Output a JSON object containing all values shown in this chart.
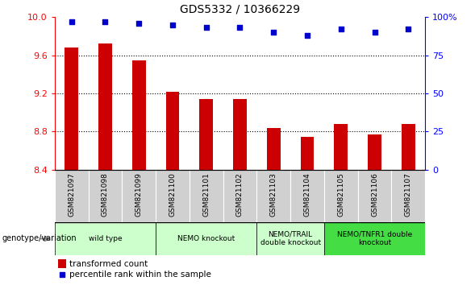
{
  "title": "GDS5332 / 10366229",
  "samples": [
    "GSM821097",
    "GSM821098",
    "GSM821099",
    "GSM821100",
    "GSM821101",
    "GSM821102",
    "GSM821103",
    "GSM821104",
    "GSM821105",
    "GSM821106",
    "GSM821107"
  ],
  "bar_values": [
    9.68,
    9.72,
    9.55,
    9.22,
    9.14,
    9.14,
    8.84,
    8.74,
    8.88,
    8.77,
    8.88
  ],
  "dot_values": [
    97,
    97,
    96,
    95,
    93,
    93,
    90,
    88,
    92,
    90,
    92
  ],
  "ylim_left": [
    8.4,
    10.0
  ],
  "ylim_right": [
    0,
    100
  ],
  "yticks_left": [
    8.4,
    8.8,
    9.2,
    9.6,
    10.0
  ],
  "yticks_right": [
    0,
    25,
    50,
    75,
    100
  ],
  "grid_lines": [
    8.8,
    9.2,
    9.6
  ],
  "bar_color": "#cc0000",
  "dot_color": "#0000cc",
  "bg_label_row": "#d0d0d0",
  "genotype_groups": [
    {
      "label": "wild type",
      "start": 0,
      "end": 2,
      "color": "#ccffcc"
    },
    {
      "label": "NEMO knockout",
      "start": 3,
      "end": 5,
      "color": "#ccffcc"
    },
    {
      "label": "NEMO/TRAIL\ndouble knockout",
      "start": 6,
      "end": 7,
      "color": "#ccffcc"
    },
    {
      "label": "NEMO/TNFR1 double\nknockout",
      "start": 8,
      "end": 10,
      "color": "#44dd44"
    }
  ],
  "legend_bar_label": "transformed count",
  "legend_dot_label": "percentile rank within the sample",
  "genotype_label": "genotype/variation"
}
